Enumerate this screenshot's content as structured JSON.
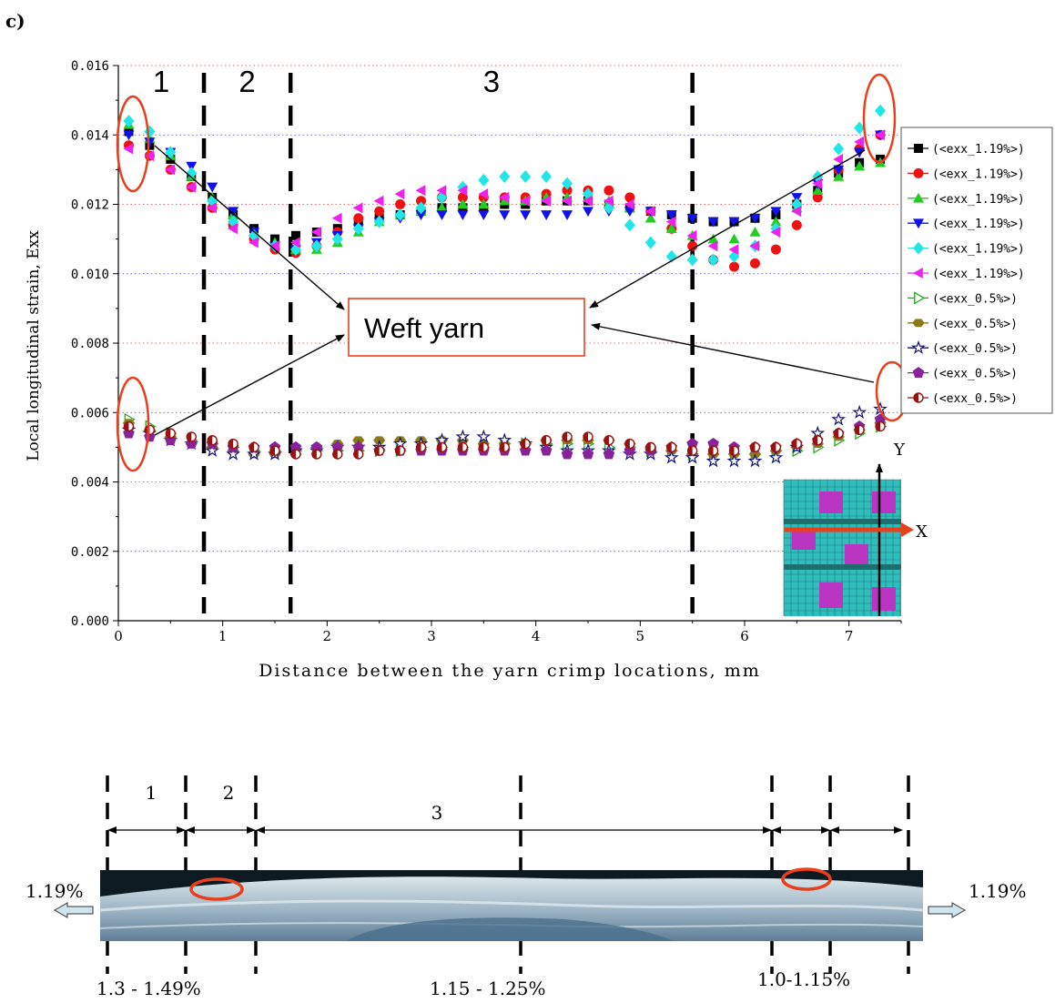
{
  "panel_label": "c)",
  "chart_data": {
    "type": "scatter",
    "xlabel": "Distance between the yarn crimp locations, mm",
    "ylabel": "Local longitudinal strain, Exx",
    "xlim": [
      0,
      7.5
    ],
    "ylim": [
      0,
      0.016
    ],
    "x_ticks": [
      0,
      1,
      2,
      3,
      4,
      5,
      6,
      7
    ],
    "y_ticks": [
      0.0,
      0.002,
      0.004,
      0.006,
      0.008,
      0.01,
      0.012,
      0.014,
      0.016
    ],
    "y_tick_labels": [
      "0.000",
      "0.002",
      "0.004",
      "0.006",
      "0.008",
      "0.010",
      "0.012",
      "0.014",
      "0.016"
    ],
    "grid": "horizontal dotted",
    "legend_position": "right",
    "regions": [
      {
        "label": "1",
        "x_start": 0,
        "x_end": 0.82
      },
      {
        "label": "2",
        "x_start": 0.82,
        "x_end": 1.65
      },
      {
        "label": "3",
        "x_start": 1.65,
        "x_end": 5.5
      }
    ],
    "region_boundaries": [
      0.82,
      1.65,
      5.5
    ],
    "annotation": "Weft yarn",
    "inset_axes": {
      "x": "X",
      "y": "Y"
    },
    "series": [
      {
        "name": "(<exx_1.19%>)",
        "marker": "square",
        "color": "#000000",
        "x": [
          0.1,
          0.3,
          0.5,
          0.7,
          0.9,
          1.1,
          1.3,
          1.5,
          1.7,
          1.9,
          2.1,
          2.3,
          2.5,
          2.7,
          2.9,
          3.1,
          3.3,
          3.5,
          3.7,
          3.9,
          4.1,
          4.3,
          4.5,
          4.7,
          4.9,
          5.1,
          5.3,
          5.5,
          5.7,
          5.9,
          6.1,
          6.3,
          6.5,
          6.7,
          6.9,
          7.1,
          7.3
        ],
        "y": [
          0.0141,
          0.0137,
          0.0133,
          0.0128,
          0.0122,
          0.0117,
          0.0113,
          0.011,
          0.0111,
          0.0112,
          0.0113,
          0.0115,
          0.0116,
          0.0117,
          0.0118,
          0.0119,
          0.0119,
          0.0119,
          0.012,
          0.012,
          0.0121,
          0.0121,
          0.0121,
          0.012,
          0.0119,
          0.0118,
          0.0117,
          0.0116,
          0.0115,
          0.0115,
          0.0116,
          0.0117,
          0.012,
          0.0124,
          0.0129,
          0.0132,
          0.0133
        ]
      },
      {
        "name": "(<exx_1.19%>)",
        "marker": "circle",
        "color": "#ee1111",
        "x": [
          0.1,
          0.3,
          0.5,
          0.7,
          0.9,
          1.1,
          1.3,
          1.5,
          1.7,
          1.9,
          2.1,
          2.3,
          2.5,
          2.7,
          2.9,
          3.1,
          3.3,
          3.5,
          3.7,
          3.9,
          4.1,
          4.3,
          4.5,
          4.7,
          4.9,
          5.1,
          5.3,
          5.5,
          5.7,
          5.9,
          6.1,
          6.3,
          6.5,
          6.7,
          6.9,
          7.1,
          7.3
        ],
        "y": [
          0.0137,
          0.0134,
          0.013,
          0.0125,
          0.0119,
          0.0114,
          0.011,
          0.0107,
          0.0106,
          0.0108,
          0.0112,
          0.0116,
          0.0118,
          0.012,
          0.0121,
          0.0122,
          0.0122,
          0.0122,
          0.0122,
          0.0122,
          0.0123,
          0.0124,
          0.0124,
          0.0124,
          0.0122,
          0.0118,
          0.0113,
          0.0108,
          0.0104,
          0.0102,
          0.0103,
          0.0107,
          0.0114,
          0.0122,
          0.013,
          0.0136,
          0.014
        ]
      },
      {
        "name": "(<exx_1.19%>)",
        "marker": "triangle-up",
        "color": "#22cc22",
        "x": [
          0.1,
          0.3,
          0.5,
          0.7,
          0.9,
          1.1,
          1.3,
          1.5,
          1.7,
          1.9,
          2.1,
          2.3,
          2.5,
          2.7,
          2.9,
          3.1,
          3.3,
          3.5,
          3.7,
          3.9,
          4.1,
          4.3,
          4.5,
          4.7,
          4.9,
          5.1,
          5.3,
          5.5,
          5.7,
          5.9,
          6.1,
          6.3,
          6.5,
          6.7,
          6.9,
          7.1,
          7.3
        ],
        "y": [
          0.0143,
          0.0139,
          0.0134,
          0.0128,
          0.0122,
          0.0117,
          0.0112,
          0.0109,
          0.0107,
          0.0107,
          0.0109,
          0.0112,
          0.0115,
          0.0117,
          0.0118,
          0.0119,
          0.012,
          0.012,
          0.0121,
          0.0121,
          0.0122,
          0.0122,
          0.0122,
          0.0121,
          0.0119,
          0.0116,
          0.0113,
          0.0111,
          0.011,
          0.011,
          0.0112,
          0.0115,
          0.0119,
          0.0124,
          0.0128,
          0.0131,
          0.0132
        ]
      },
      {
        "name": "(<exx_1.19%>)",
        "marker": "triangle-down",
        "color": "#1111ee",
        "x": [
          0.1,
          0.3,
          0.5,
          0.7,
          0.9,
          1.1,
          1.3,
          1.5,
          1.7,
          1.9,
          2.1,
          2.3,
          2.5,
          2.7,
          2.9,
          3.1,
          3.3,
          3.5,
          3.7,
          3.9,
          4.1,
          4.3,
          4.5,
          4.7,
          4.9,
          5.1,
          5.3,
          5.5,
          5.7,
          5.9,
          6.1,
          6.3,
          6.5,
          6.7,
          6.9,
          7.1,
          7.3
        ],
        "y": [
          0.014,
          0.0138,
          0.0135,
          0.0131,
          0.0125,
          0.0118,
          0.0112,
          0.0108,
          0.0107,
          0.0109,
          0.0111,
          0.0113,
          0.0115,
          0.0116,
          0.0117,
          0.0117,
          0.0117,
          0.0117,
          0.0117,
          0.0117,
          0.0117,
          0.0117,
          0.0118,
          0.0118,
          0.0118,
          0.0118,
          0.0117,
          0.0116,
          0.0115,
          0.0115,
          0.0116,
          0.0118,
          0.0122,
          0.0126,
          0.013,
          0.0135,
          0.014
        ]
      },
      {
        "name": "(<exx_1.19%>)",
        "marker": "diamond",
        "color": "#22e6e6",
        "x": [
          0.1,
          0.3,
          0.5,
          0.7,
          0.9,
          1.1,
          1.3,
          1.5,
          1.7,
          1.9,
          2.1,
          2.3,
          2.5,
          2.7,
          2.9,
          3.1,
          3.3,
          3.5,
          3.7,
          3.9,
          4.1,
          4.3,
          4.5,
          4.7,
          4.9,
          5.1,
          5.3,
          5.5,
          5.7,
          5.9,
          6.1,
          6.3,
          6.5,
          6.7,
          6.9,
          7.1,
          7.3
        ],
        "y": [
          0.0144,
          0.0141,
          0.0135,
          0.0129,
          0.0121,
          0.0115,
          0.0111,
          0.0108,
          0.0107,
          0.0108,
          0.011,
          0.0113,
          0.0115,
          0.0117,
          0.0119,
          0.0122,
          0.0125,
          0.0127,
          0.0128,
          0.0128,
          0.0128,
          0.0126,
          0.0123,
          0.0119,
          0.0114,
          0.0109,
          0.0105,
          0.0104,
          0.0104,
          0.0105,
          0.0108,
          0.0113,
          0.012,
          0.0128,
          0.0136,
          0.0142,
          0.0147
        ]
      },
      {
        "name": "(<exx_1.19%>)",
        "marker": "triangle-left",
        "color": "#ee22ee",
        "x": [
          0.1,
          0.3,
          0.5,
          0.7,
          0.9,
          1.1,
          1.3,
          1.5,
          1.7,
          1.9,
          2.1,
          2.3,
          2.5,
          2.7,
          2.9,
          3.1,
          3.3,
          3.5,
          3.7,
          3.9,
          4.1,
          4.3,
          4.5,
          4.7,
          4.9,
          5.1,
          5.3,
          5.5,
          5.7,
          5.9,
          6.1,
          6.3,
          6.5,
          6.7,
          6.9,
          7.1,
          7.3
        ],
        "y": [
          0.0136,
          0.0134,
          0.013,
          0.0125,
          0.0119,
          0.0113,
          0.0109,
          0.0108,
          0.0109,
          0.0112,
          0.0116,
          0.0119,
          0.0121,
          0.0123,
          0.0124,
          0.0124,
          0.0124,
          0.0123,
          0.0122,
          0.0121,
          0.0121,
          0.0121,
          0.0121,
          0.0121,
          0.012,
          0.0118,
          0.0115,
          0.0111,
          0.0108,
          0.0107,
          0.0108,
          0.0112,
          0.0118,
          0.0126,
          0.0133,
          0.0138,
          0.014
        ]
      },
      {
        "name": "(<exx_0.5%>)",
        "marker": "triangle-right-open",
        "color": "#22aa22",
        "x": [
          0.1,
          0.3,
          0.5,
          0.7,
          0.9,
          1.1,
          1.3,
          1.5,
          1.7,
          1.9,
          2.1,
          2.3,
          2.5,
          2.7,
          2.9,
          3.1,
          3.3,
          3.5,
          3.7,
          3.9,
          4.1,
          4.3,
          4.5,
          4.7,
          4.9,
          5.1,
          5.3,
          5.5,
          5.7,
          5.9,
          6.1,
          6.3,
          6.5,
          6.7,
          6.9,
          7.1,
          7.3
        ],
        "y": [
          0.0058,
          0.0056,
          0.0054,
          0.0052,
          0.0051,
          0.005,
          0.0049,
          0.0049,
          0.0049,
          0.0049,
          0.0049,
          0.0049,
          0.0049,
          0.0049,
          0.005,
          0.005,
          0.005,
          0.005,
          0.0051,
          0.0051,
          0.0051,
          0.0051,
          0.0051,
          0.005,
          0.005,
          0.0049,
          0.0049,
          0.0048,
          0.0048,
          0.0048,
          0.0048,
          0.0049,
          0.0049,
          0.005,
          0.0052,
          0.0054,
          0.0056
        ]
      },
      {
        "name": "(<exx_0.5%>)",
        "marker": "hexagon",
        "color": "#8a7a18",
        "x": [
          0.1,
          0.3,
          0.5,
          0.7,
          0.9,
          1.1,
          1.3,
          1.5,
          1.7,
          1.9,
          2.1,
          2.3,
          2.5,
          2.7,
          2.9,
          3.1,
          3.3,
          3.5,
          3.7,
          3.9,
          4.1,
          4.3,
          4.5,
          4.7,
          4.9,
          5.1,
          5.3,
          5.5,
          5.7,
          5.9,
          6.1,
          6.3,
          6.5,
          6.7,
          6.9,
          7.1,
          7.3
        ],
        "y": [
          0.0057,
          0.0055,
          0.0053,
          0.0051,
          0.005,
          0.0049,
          0.0048,
          0.0048,
          0.0048,
          0.005,
          0.0051,
          0.0052,
          0.0052,
          0.0052,
          0.0052,
          0.0052,
          0.0052,
          0.0051,
          0.0051,
          0.0051,
          0.0052,
          0.0052,
          0.0052,
          0.0052,
          0.0051,
          0.005,
          0.0049,
          0.0048,
          0.0048,
          0.0048,
          0.0048,
          0.0049,
          0.005,
          0.0051,
          0.0053,
          0.0055,
          0.0057
        ]
      },
      {
        "name": "(<exx_0.5%>)",
        "marker": "star",
        "color": "#111177",
        "x": [
          0.1,
          0.3,
          0.5,
          0.7,
          0.9,
          1.1,
          1.3,
          1.5,
          1.7,
          1.9,
          2.1,
          2.3,
          2.5,
          2.7,
          2.9,
          3.1,
          3.3,
          3.5,
          3.7,
          3.9,
          4.1,
          4.3,
          4.5,
          4.7,
          4.9,
          5.1,
          5.3,
          5.5,
          5.7,
          5.9,
          6.1,
          6.3,
          6.5,
          6.7,
          6.9,
          7.1,
          7.3
        ],
        "y": [
          0.0055,
          0.0054,
          0.0052,
          0.0051,
          0.0049,
          0.0048,
          0.0048,
          0.0048,
          0.0049,
          0.0049,
          0.005,
          0.005,
          0.005,
          0.0051,
          0.0051,
          0.0052,
          0.0053,
          0.0053,
          0.0052,
          0.0051,
          0.005,
          0.0049,
          0.0049,
          0.0049,
          0.0048,
          0.0048,
          0.0047,
          0.0047,
          0.0046,
          0.0046,
          0.0046,
          0.0047,
          0.005,
          0.0054,
          0.0058,
          0.006,
          0.0061
        ]
      },
      {
        "name": "(<exx_0.5%>)",
        "marker": "pentagon",
        "color": "#882299",
        "x": [
          0.1,
          0.3,
          0.5,
          0.7,
          0.9,
          1.1,
          1.3,
          1.5,
          1.7,
          1.9,
          2.1,
          2.3,
          2.5,
          2.7,
          2.9,
          3.1,
          3.3,
          3.5,
          3.7,
          3.9,
          4.1,
          4.3,
          4.5,
          4.7,
          4.9,
          5.1,
          5.3,
          5.5,
          5.7,
          5.9,
          6.1,
          6.3,
          6.5,
          6.7,
          6.9,
          7.1,
          7.3
        ],
        "y": [
          0.0054,
          0.0053,
          0.0052,
          0.0051,
          0.0051,
          0.005,
          0.005,
          0.005,
          0.005,
          0.005,
          0.005,
          0.005,
          0.0049,
          0.0049,
          0.0049,
          0.0049,
          0.0049,
          0.0049,
          0.0049,
          0.0049,
          0.0049,
          0.0048,
          0.0048,
          0.0048,
          0.0049,
          0.0049,
          0.005,
          0.0051,
          0.0051,
          0.005,
          0.005,
          0.005,
          0.0051,
          0.0052,
          0.0054,
          0.0056,
          0.0058
        ]
      },
      {
        "name": "(<exx_0.5%>)",
        "marker": "circle-half",
        "color": "#991111",
        "x": [
          0.1,
          0.3,
          0.5,
          0.7,
          0.9,
          1.1,
          1.3,
          1.5,
          1.7,
          1.9,
          2.1,
          2.3,
          2.5,
          2.7,
          2.9,
          3.1,
          3.3,
          3.5,
          3.7,
          3.9,
          4.1,
          4.3,
          4.5,
          4.7,
          4.9,
          5.1,
          5.3,
          5.5,
          5.7,
          5.9,
          6.1,
          6.3,
          6.5,
          6.7,
          6.9,
          7.1,
          7.3
        ],
        "y": [
          0.0056,
          0.0055,
          0.0054,
          0.0053,
          0.0052,
          0.0051,
          0.005,
          0.0049,
          0.0048,
          0.0048,
          0.0048,
          0.0048,
          0.0049,
          0.0049,
          0.005,
          0.005,
          0.005,
          0.005,
          0.005,
          0.0051,
          0.0052,
          0.0053,
          0.0053,
          0.0052,
          0.0051,
          0.005,
          0.005,
          0.0049,
          0.0049,
          0.0049,
          0.005,
          0.005,
          0.0051,
          0.0052,
          0.0054,
          0.0055,
          0.0056
        ]
      }
    ]
  },
  "specimen": {
    "region_labels": [
      "1",
      "2",
      "3"
    ],
    "left_strain": "1.19%",
    "right_strain": "1.19%",
    "range_labels": [
      "1.3 - 1.49%",
      "1.15 - 1.25%",
      "1.0-1.15%"
    ]
  }
}
